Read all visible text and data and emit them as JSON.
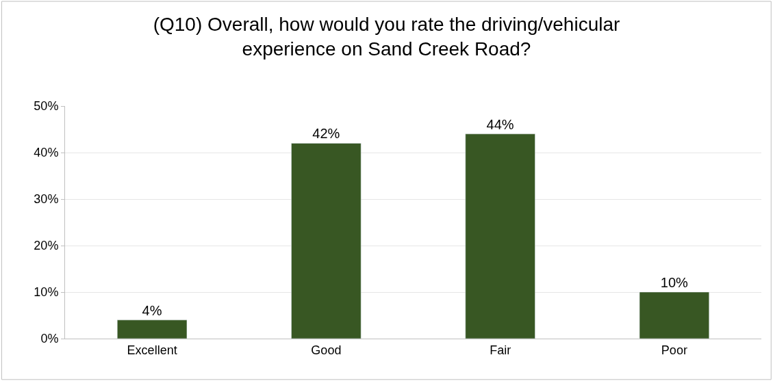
{
  "chart_data": {
    "type": "bar",
    "title": "(Q10) Overall, how would you rate the driving/vehicular\nexperience on Sand Creek Road?",
    "categories": [
      "Excellent",
      "Good",
      "Fair",
      "Poor"
    ],
    "values": [
      4,
      42,
      44,
      10
    ],
    "value_labels": [
      "4%",
      "42%",
      "44%",
      "10%"
    ],
    "color": "#385723",
    "ylim": [
      0,
      50
    ],
    "yticks": [
      {
        "value": 0,
        "label": "0%"
      },
      {
        "value": 10,
        "label": "10%"
      },
      {
        "value": 20,
        "label": "20%"
      },
      {
        "value": 30,
        "label": "30%"
      },
      {
        "value": 40,
        "label": "40%"
      },
      {
        "value": 50,
        "label": "50%"
      }
    ],
    "grid": "y"
  }
}
